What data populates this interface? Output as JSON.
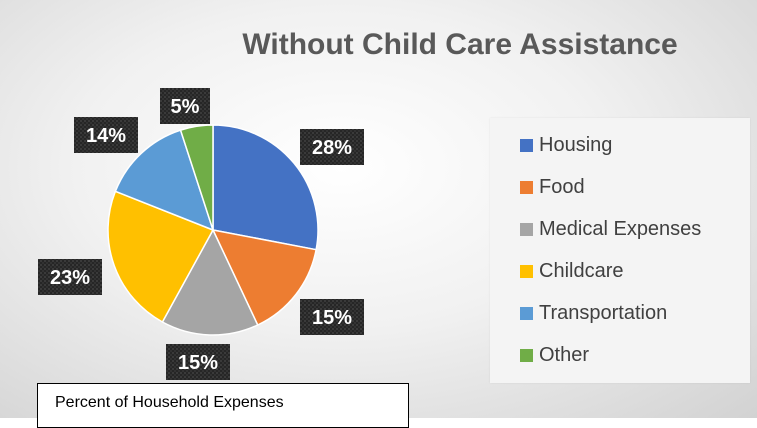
{
  "chart_data": {
    "type": "pie",
    "title": "Without Child Care Assistance",
    "categories": [
      "Housing",
      "Food",
      "Medical Expenses",
      "Childcare",
      "Transportation",
      "Other"
    ],
    "values": [
      28,
      15,
      15,
      23,
      14,
      5
    ],
    "data_labels": [
      "28%",
      "15%",
      "15%",
      "23%",
      "14%",
      "5%"
    ],
    "colors": [
      "#4472C4",
      "#ED7D31",
      "#A5A5A5",
      "#FFC000",
      "#5B9BD5",
      "#70AD47"
    ],
    "start_angle": "12 o'clock",
    "direction": "clockwise",
    "legend_position": "right"
  },
  "note": "Percent of Household Expenses"
}
